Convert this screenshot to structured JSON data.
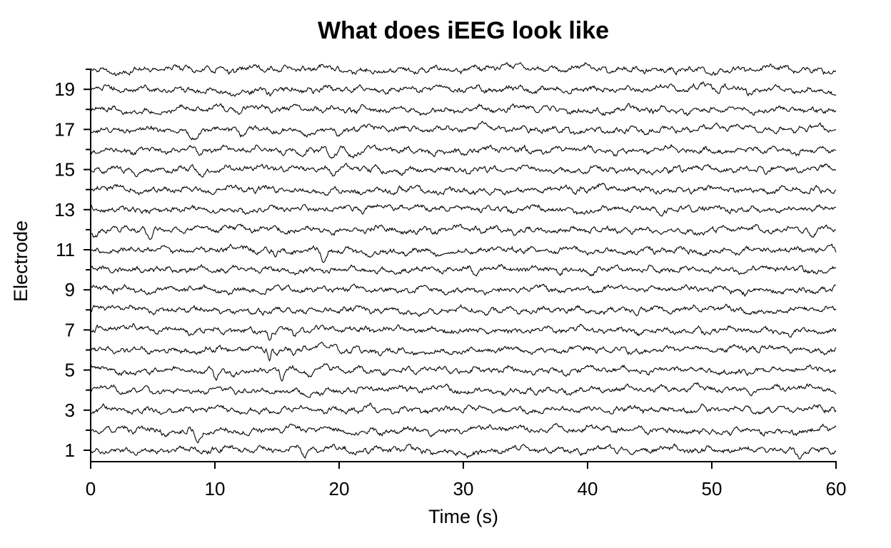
{
  "chart_data": {
    "type": "line",
    "title": "What does iEEG look like",
    "xlabel": "Time (s)",
    "ylabel": "Electrode",
    "xlim": [
      0,
      60
    ],
    "ylim": [
      0.5,
      20
    ],
    "x_ticks": [
      0,
      10,
      20,
      30,
      40,
      50,
      60
    ],
    "y_tick_labels": [
      1,
      3,
      5,
      7,
      9,
      11,
      13,
      15,
      17,
      19
    ],
    "y_minor_ticks": [
      2,
      4,
      6,
      8,
      10,
      12,
      14,
      16,
      18,
      20
    ],
    "electrodes": [
      1,
      2,
      3,
      4,
      5,
      6,
      7,
      8,
      9,
      10,
      11,
      12,
      13,
      14,
      15,
      16,
      17,
      18,
      19,
      20
    ],
    "grid": false,
    "legend": "none",
    "trace_color": "#000000",
    "events": [
      {
        "electrode": 1,
        "t": 17.2,
        "depth": 0.45,
        "width": 0.5
      },
      {
        "electrode": 1,
        "t": 43.5,
        "depth": 0.35,
        "width": 0.7
      },
      {
        "electrode": 1,
        "t": 57.1,
        "depth": 0.45,
        "width": 0.4
      },
      {
        "electrode": 2,
        "t": 1.8,
        "depth": 0.45,
        "width": 0.5
      },
      {
        "electrode": 2,
        "t": 8.6,
        "depth": 0.4,
        "width": 0.5
      },
      {
        "electrode": 2,
        "t": 17.3,
        "depth": 0.4,
        "width": 0.5
      },
      {
        "electrode": 5,
        "t": 10.1,
        "depth": 0.55,
        "width": 0.35
      },
      {
        "electrode": 5,
        "t": 15.4,
        "depth": 0.65,
        "width": 0.3
      },
      {
        "electrode": 5,
        "t": 17.6,
        "depth": 0.4,
        "width": 0.5
      },
      {
        "electrode": 6,
        "t": 14.4,
        "depth": 0.6,
        "width": 0.25
      },
      {
        "electrode": 6,
        "t": 16.3,
        "depth": 0.35,
        "width": 0.3
      },
      {
        "electrode": 7,
        "t": 14.4,
        "depth": 0.6,
        "width": 0.25
      },
      {
        "electrode": 7,
        "t": 16.4,
        "depth": 0.45,
        "width": 0.3
      },
      {
        "electrode": 10,
        "t": 31.0,
        "depth": 0.3,
        "width": 0.5
      },
      {
        "electrode": 11,
        "t": 14.9,
        "depth": 0.35,
        "width": 0.4
      },
      {
        "electrode": 11,
        "t": 18.8,
        "depth": 0.55,
        "width": 0.4
      },
      {
        "electrode": 12,
        "t": 0.3,
        "depth": 0.6,
        "width": 0.5
      },
      {
        "electrode": 12,
        "t": 4.7,
        "depth": 0.4,
        "width": 0.5
      },
      {
        "electrode": 12,
        "t": 58.0,
        "depth": 0.35,
        "width": 0.5
      },
      {
        "electrode": 15,
        "t": 8.8,
        "depth": 0.4,
        "width": 0.6
      },
      {
        "electrode": 15,
        "t": 19.5,
        "depth": 0.55,
        "width": 0.5
      },
      {
        "electrode": 16,
        "t": 17.0,
        "depth": 0.6,
        "width": 0.9
      },
      {
        "electrode": 16,
        "t": 19.5,
        "depth": 0.55,
        "width": 0.7
      },
      {
        "electrode": 16,
        "t": 21.2,
        "depth": 0.45,
        "width": 0.6
      },
      {
        "electrode": 17,
        "t": 8.1,
        "depth": 0.4,
        "width": 0.7
      },
      {
        "electrode": 17,
        "t": 12.2,
        "depth": 0.35,
        "width": 0.6
      },
      {
        "electrode": 17,
        "t": 17.2,
        "depth": 0.4,
        "width": 0.7
      },
      {
        "electrode": 17,
        "t": 19.9,
        "depth": 0.45,
        "width": 0.6
      },
      {
        "electrode": 20,
        "t": 21.2,
        "depth": 0.35,
        "width": 0.5
      }
    ]
  }
}
